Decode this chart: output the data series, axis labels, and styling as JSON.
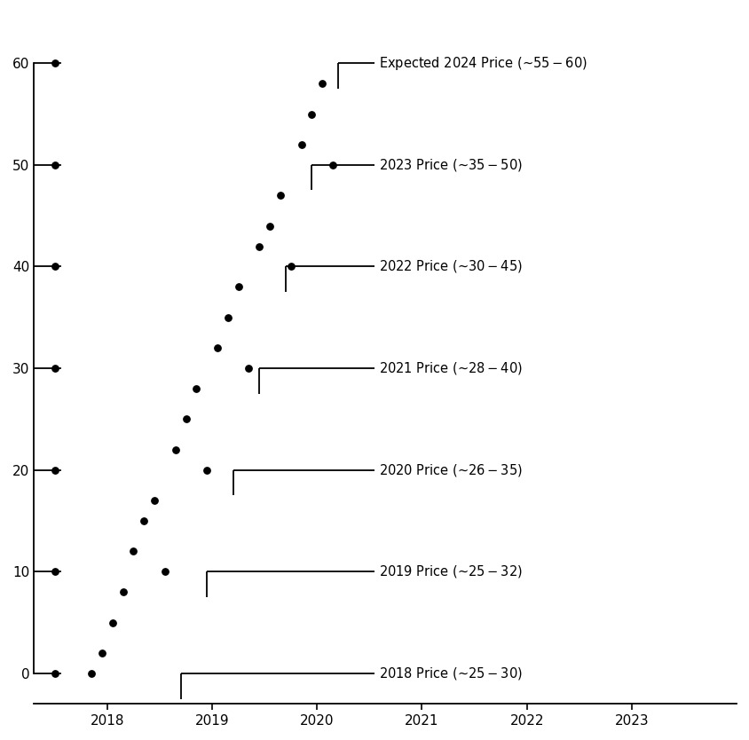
{
  "yticks": [
    0,
    10,
    20,
    30,
    40,
    50,
    60
  ],
  "xticks": [
    2018,
    2019,
    2020,
    2021,
    2022,
    2023
  ],
  "xlim": [
    2017.3,
    2024.0
  ],
  "ylim": [
    -3,
    65
  ],
  "scatter_dots": [
    [
      2017.5,
      0
    ],
    [
      2017.5,
      10
    ],
    [
      2017.5,
      20
    ],
    [
      2017.5,
      30
    ],
    [
      2017.5,
      40
    ],
    [
      2017.5,
      50
    ],
    [
      2017.5,
      60
    ],
    [
      2017.85,
      0
    ],
    [
      2017.95,
      2
    ],
    [
      2018.05,
      5
    ],
    [
      2018.15,
      8
    ],
    [
      2018.25,
      12
    ],
    [
      2018.35,
      15
    ],
    [
      2018.45,
      17
    ],
    [
      2018.55,
      10
    ],
    [
      2018.65,
      22
    ],
    [
      2018.75,
      25
    ],
    [
      2018.85,
      28
    ],
    [
      2018.95,
      20
    ],
    [
      2019.05,
      32
    ],
    [
      2019.15,
      35
    ],
    [
      2019.25,
      38
    ],
    [
      2019.35,
      30
    ],
    [
      2019.45,
      42
    ],
    [
      2019.55,
      44
    ],
    [
      2019.65,
      47
    ],
    [
      2019.75,
      40
    ],
    [
      2019.85,
      52
    ],
    [
      2019.95,
      55
    ],
    [
      2020.05,
      58
    ],
    [
      2020.15,
      50
    ]
  ],
  "annotations": [
    {
      "y": 0,
      "x_bracket_start": 2018.7,
      "x_line_end": 2020.55,
      "label": "2018 Price (~$25-$30)"
    },
    {
      "y": 10,
      "x_bracket_start": 2018.95,
      "x_line_end": 2020.55,
      "label": "2019 Price (~$25-$32)"
    },
    {
      "y": 20,
      "x_bracket_start": 2019.2,
      "x_line_end": 2020.55,
      "label": "2020 Price (~$26-$35)"
    },
    {
      "y": 30,
      "x_bracket_start": 2019.45,
      "x_line_end": 2020.55,
      "label": "2021 Price (~$28-$40)"
    },
    {
      "y": 40,
      "x_bracket_start": 2019.7,
      "x_line_end": 2020.55,
      "label": "2022 Price (~$30-$45)"
    },
    {
      "y": 50,
      "x_bracket_start": 2019.95,
      "x_line_end": 2020.55,
      "label": "2023 Price (~$35-$50)"
    },
    {
      "y": 60,
      "x_bracket_start": 2020.2,
      "x_line_end": 2020.55,
      "label": "Expected 2024 Price (~$55-$60)"
    }
  ],
  "bracket_drop": 2.5,
  "dot_color": "#000000",
  "dot_size": 28,
  "background_color": "#ffffff",
  "ytick_line_x_start": 2017.3,
  "ytick_line_x_end": 2017.55,
  "label_fontsize": 10.5,
  "tick_fontsize": 11
}
